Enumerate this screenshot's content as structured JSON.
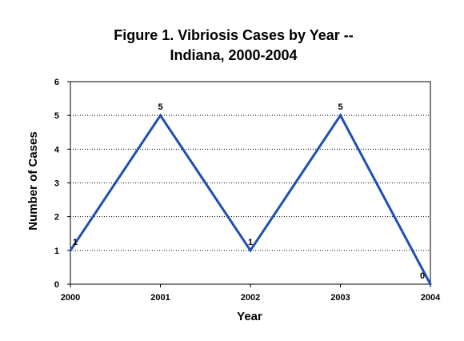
{
  "chart_data": {
    "type": "line",
    "title_line1": "Figure 1.  Vibriosis Cases by Year --",
    "title_line2": "Indiana, 2000-2004",
    "xlabel": "Year",
    "ylabel": "Number of Cases",
    "categories": [
      "2000",
      "2001",
      "2002",
      "2003",
      "2004"
    ],
    "series": [
      {
        "values": [
          1,
          5,
          1,
          5,
          0
        ],
        "color": "#1f4fb4"
      }
    ],
    "data_labels": [
      "1",
      "5",
      "1",
      "5",
      "0"
    ],
    "ylim": [
      0,
      6
    ],
    "yticks": [
      "0",
      "1",
      "2",
      "3",
      "4",
      "5",
      "6"
    ],
    "grid": true,
    "legend": "none"
  }
}
